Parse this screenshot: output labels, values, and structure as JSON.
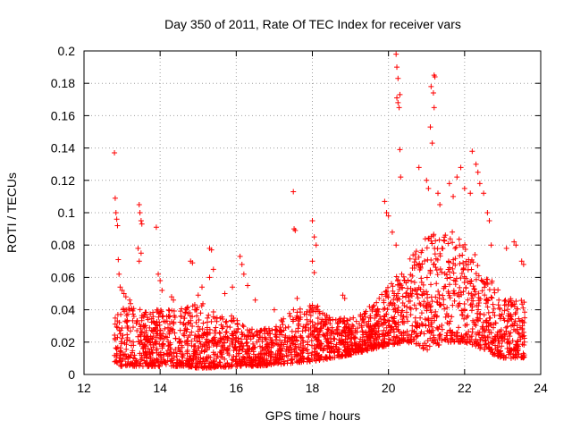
{
  "chart_data": {
    "type": "scatter",
    "title": "Day 350 of 2011, Rate Of TEC Index for receiver vars",
    "xlabel": "GPS time / hours",
    "ylabel": "ROTI / TECUs",
    "xlim": [
      12,
      24
    ],
    "ylim": [
      0,
      0.2
    ],
    "xticks": [
      12,
      14,
      16,
      18,
      20,
      22,
      24
    ],
    "yticks": [
      0,
      0.02,
      0.04,
      0.06,
      0.08,
      0.1,
      0.12,
      0.14,
      0.16,
      0.18,
      0.2
    ],
    "xtick_labels": [
      "12",
      "14",
      "16",
      "18",
      "20",
      "22",
      "24"
    ],
    "ytick_labels": [
      "0",
      "0.02",
      "0.04",
      "0.06",
      "0.08",
      "0.1",
      "0.12",
      "0.14",
      "0.16",
      "0.18",
      "0.2"
    ],
    "grid": true,
    "marker": "+",
    "marker_color": "#ff0000",
    "density_profile": [
      {
        "x": 12.8,
        "low": 0.005,
        "high": 0.035
      },
      {
        "x": 13.2,
        "low": 0.005,
        "high": 0.045
      },
      {
        "x": 13.6,
        "low": 0.005,
        "high": 0.04
      },
      {
        "x": 14.0,
        "low": 0.005,
        "high": 0.04
      },
      {
        "x": 14.5,
        "low": 0.005,
        "high": 0.04
      },
      {
        "x": 15.0,
        "low": 0.004,
        "high": 0.045
      },
      {
        "x": 15.5,
        "low": 0.004,
        "high": 0.04
      },
      {
        "x": 16.0,
        "low": 0.005,
        "high": 0.035
      },
      {
        "x": 16.5,
        "low": 0.005,
        "high": 0.028
      },
      {
        "x": 17.0,
        "low": 0.006,
        "high": 0.03
      },
      {
        "x": 17.5,
        "low": 0.007,
        "high": 0.04
      },
      {
        "x": 18.0,
        "low": 0.008,
        "high": 0.045
      },
      {
        "x": 18.5,
        "low": 0.01,
        "high": 0.035
      },
      {
        "x": 19.0,
        "low": 0.012,
        "high": 0.035
      },
      {
        "x": 19.5,
        "low": 0.015,
        "high": 0.04
      },
      {
        "x": 20.0,
        "low": 0.018,
        "high": 0.055
      },
      {
        "x": 20.5,
        "low": 0.02,
        "high": 0.07
      },
      {
        "x": 21.0,
        "low": 0.015,
        "high": 0.085
      },
      {
        "x": 21.5,
        "low": 0.02,
        "high": 0.09
      },
      {
        "x": 22.0,
        "low": 0.02,
        "high": 0.085
      },
      {
        "x": 22.5,
        "low": 0.015,
        "high": 0.065
      },
      {
        "x": 23.0,
        "low": 0.01,
        "high": 0.05
      },
      {
        "x": 23.6,
        "low": 0.01,
        "high": 0.045
      }
    ],
    "points": [
      [
        12.8,
        0.137
      ],
      [
        12.82,
        0.109
      ],
      [
        12.84,
        0.1
      ],
      [
        12.86,
        0.096
      ],
      [
        12.88,
        0.092
      ],
      [
        12.9,
        0.071
      ],
      [
        12.92,
        0.062
      ],
      [
        12.95,
        0.054
      ],
      [
        13.0,
        0.052
      ],
      [
        13.05,
        0.05
      ],
      [
        13.1,
        0.048
      ],
      [
        13.2,
        0.046
      ],
      [
        13.45,
        0.105
      ],
      [
        13.47,
        0.1
      ],
      [
        13.5,
        0.095
      ],
      [
        13.52,
        0.093
      ],
      [
        13.42,
        0.078
      ],
      [
        13.45,
        0.07
      ],
      [
        13.5,
        0.075
      ],
      [
        13.9,
        0.091
      ],
      [
        13.95,
        0.062
      ],
      [
        14.0,
        0.058
      ],
      [
        14.05,
        0.052
      ],
      [
        14.3,
        0.048
      ],
      [
        14.35,
        0.046
      ],
      [
        14.8,
        0.07
      ],
      [
        14.85,
        0.069
      ],
      [
        15.0,
        0.049
      ],
      [
        15.1,
        0.054
      ],
      [
        15.3,
        0.078
      ],
      [
        15.35,
        0.077
      ],
      [
        15.4,
        0.065
      ],
      [
        15.3,
        0.06
      ],
      [
        15.7,
        0.05
      ],
      [
        15.9,
        0.054
      ],
      [
        16.1,
        0.073
      ],
      [
        16.15,
        0.068
      ],
      [
        16.2,
        0.062
      ],
      [
        16.3,
        0.055
      ],
      [
        16.5,
        0.046
      ],
      [
        17.0,
        0.04
      ],
      [
        17.5,
        0.113
      ],
      [
        17.52,
        0.09
      ],
      [
        17.55,
        0.089
      ],
      [
        17.6,
        0.047
      ],
      [
        18.0,
        0.095
      ],
      [
        18.05,
        0.085
      ],
      [
        18.1,
        0.08
      ],
      [
        18.0,
        0.07
      ],
      [
        18.05,
        0.063
      ],
      [
        18.8,
        0.049
      ],
      [
        18.85,
        0.047
      ],
      [
        19.5,
        0.042
      ],
      [
        19.9,
        0.107
      ],
      [
        19.95,
        0.1
      ],
      [
        20.0,
        0.098
      ],
      [
        20.2,
        0.198
      ],
      [
        20.22,
        0.19
      ],
      [
        20.25,
        0.183
      ],
      [
        20.22,
        0.171
      ],
      [
        20.25,
        0.168
      ],
      [
        20.28,
        0.165
      ],
      [
        20.3,
        0.173
      ],
      [
        20.3,
        0.139
      ],
      [
        20.32,
        0.122
      ],
      [
        20.1,
        0.088
      ],
      [
        20.2,
        0.08
      ],
      [
        20.8,
        0.128
      ],
      [
        21.0,
        0.12
      ],
      [
        21.05,
        0.115
      ],
      [
        21.1,
        0.153
      ],
      [
        21.15,
        0.143
      ],
      [
        21.2,
        0.185
      ],
      [
        21.22,
        0.184
      ],
      [
        21.12,
        0.178
      ],
      [
        21.18,
        0.174
      ],
      [
        21.2,
        0.165
      ],
      [
        21.3,
        0.112
      ],
      [
        21.35,
        0.105
      ],
      [
        21.6,
        0.118
      ],
      [
        21.7,
        0.11
      ],
      [
        21.8,
        0.122
      ],
      [
        21.9,
        0.128
      ],
      [
        22.0,
        0.115
      ],
      [
        22.15,
        0.112
      ],
      [
        22.2,
        0.138
      ],
      [
        22.3,
        0.13
      ],
      [
        22.35,
        0.125
      ],
      [
        22.4,
        0.118
      ],
      [
        22.5,
        0.112
      ],
      [
        22.6,
        0.1
      ],
      [
        22.65,
        0.095
      ],
      [
        22.7,
        0.08
      ],
      [
        23.1,
        0.078
      ],
      [
        23.3,
        0.082
      ],
      [
        23.35,
        0.08
      ],
      [
        23.5,
        0.07
      ],
      [
        23.55,
        0.068
      ]
    ]
  }
}
